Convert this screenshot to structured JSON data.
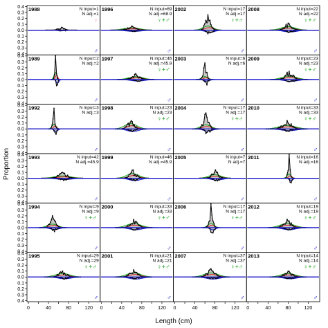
{
  "chart_data": {
    "type": "line",
    "xlabel": "Length (cm)",
    "ylabel": "Proportion",
    "xlim": [
      0,
      140
    ],
    "ylim": [
      0,
      0.4
    ],
    "x_ticks": [
      0,
      20,
      40,
      60,
      80,
      100,
      120
    ],
    "x_tick_labels": [
      "0",
      "20",
      "40",
      "60",
      "80",
      "100",
      "120"
    ],
    "y_ticks": [
      0,
      0.1,
      0.2,
      0.3,
      0.4
    ],
    "y_tick_labels_top": [
      "0.0",
      "0.1",
      "0.2",
      "0.3",
      "0.4"
    ],
    "y_tick_labels_bottom": [
      "0.1",
      "0.2",
      "0.3",
      "0.4"
    ],
    "symbols": {
      "female": "♀",
      "male": "♂",
      "combined": "♀+♂"
    },
    "colors": {
      "observed": "#000000",
      "fill": "#bdbdbd",
      "combined_fit": "#1a9e1a",
      "female_fit": "#d62728",
      "male_fit": "#1f1fd0",
      "zero_line": "#1f1fd0",
      "combined_symbol": "#1a9e1a",
      "female_symbol": "#e8a0a0",
      "male_symbol": "#1f1fd0"
    },
    "panels": [
      {
        "year": "1988",
        "n_input": "N input=1",
        "n_adj": "N adj.=1",
        "symbol": "female",
        "peak": [
          65,
          0.05
        ],
        "spread": 12,
        "combined_peak": 0
      },
      {
        "year": "1996",
        "n_input": "N input=69",
        "n_adj": "N adj.=68.9",
        "symbol": "combined",
        "peak": [
          60,
          0.07
        ],
        "spread": 16,
        "combined_peak": 0.04
      },
      {
        "year": "2002",
        "n_input": "N input=17",
        "n_adj": "N adj.=17",
        "symbol": "combined",
        "peak": [
          66,
          0.26
        ],
        "spread": 10,
        "combined_peak": 0.07
      },
      {
        "year": "2008",
        "n_input": "N input=22",
        "n_adj": "N adj.=22",
        "symbol": "combined",
        "peak": [
          80,
          0.12
        ],
        "spread": 14,
        "combined_peak": 0.06
      },
      {
        "year": "1989",
        "n_input": "N input=2",
        "n_adj": "N adj.=2",
        "symbol": "none",
        "peak": [
          54,
          0.4
        ],
        "spread": 3,
        "combined_peak": 0.12
      },
      {
        "year": "1997",
        "n_input": "N input=46",
        "n_adj": "N adj.=45.9",
        "symbol": "combined",
        "peak": [
          68,
          0.1
        ],
        "spread": 14,
        "combined_peak": 0.05
      },
      {
        "year": "2003",
        "n_input": "N input=6",
        "n_adj": "N adj.=6",
        "symbol": "none",
        "peak": [
          60,
          0.28
        ],
        "spread": 6,
        "combined_peak": 0.05
      },
      {
        "year": "2009",
        "n_input": "N input=23",
        "n_adj": "N adj.=23",
        "symbol": "combined",
        "peak": [
          82,
          0.14
        ],
        "spread": 14,
        "combined_peak": 0.06
      },
      {
        "year": "1992",
        "n_input": "N input=3",
        "n_adj": "N adj.=3",
        "symbol": "none",
        "peak": [
          51,
          0.35
        ],
        "spread": 4,
        "combined_peak": 0.08
      },
      {
        "year": "1998",
        "n_input": "N input=23",
        "n_adj": "N adj.=23",
        "symbol": "combined",
        "peak": [
          58,
          0.14
        ],
        "spread": 12,
        "combined_peak": 0.09
      },
      {
        "year": "2004",
        "n_input": "N input=17",
        "n_adj": "N adj.=17",
        "symbol": "combined",
        "peak": [
          62,
          0.27
        ],
        "spread": 10,
        "combined_peak": 0.07
      },
      {
        "year": "2010",
        "n_input": "N input=33",
        "n_adj": "N adj.=33",
        "symbol": "combined",
        "peak": [
          78,
          0.14
        ],
        "spread": 16,
        "combined_peak": 0.06
      },
      {
        "year": "1993",
        "n_input": "N input=42",
        "n_adj": "N adj.=45.9",
        "symbol": "none",
        "peak": [
          68,
          0.1
        ],
        "spread": 16,
        "combined_peak": 0.04
      },
      {
        "year": "1999",
        "n_input": "N input=46",
        "n_adj": "N adj.=45.9",
        "symbol": "none",
        "peak": [
          62,
          0.14
        ],
        "spread": 12,
        "combined_peak": 0.08
      },
      {
        "year": "2005",
        "n_input": "N input=7",
        "n_adj": "N adj.=7",
        "symbol": "none",
        "peak": [
          80,
          0.14
        ],
        "spread": 12,
        "combined_peak": 0.06
      },
      {
        "year": "2011",
        "n_input": "N input=16",
        "n_adj": "N adj.=16",
        "symbol": "none",
        "peak": [
          82,
          0.4
        ],
        "spread": 4,
        "combined_peak": 0.07
      },
      {
        "year": "1994",
        "n_input": "N input=9",
        "n_adj": "N adj.=9",
        "symbol": "combined",
        "peak": [
          48,
          0.2
        ],
        "spread": 10,
        "combined_peak": 0.06
      },
      {
        "year": "2000",
        "n_input": "N input=33",
        "n_adj": "N adj.=33",
        "symbol": "combined",
        "peak": [
          64,
          0.14
        ],
        "spread": 14,
        "combined_peak": 0.07
      },
      {
        "year": "2006",
        "n_input": "N input=17",
        "n_adj": "N adj.=17",
        "symbol": "combined",
        "peak": [
          72,
          0.4
        ],
        "spread": 6,
        "combined_peak": 0.07
      },
      {
        "year": "2012",
        "n_input": "N input=19",
        "n_adj": "N adj.=19",
        "symbol": "combined",
        "peak": [
          78,
          0.14
        ],
        "spread": 14,
        "combined_peak": 0.07
      },
      {
        "year": "1995",
        "n_input": "N input=29",
        "n_adj": "N adj.=29",
        "symbol": "combined",
        "peak": [
          68,
          0.1
        ],
        "spread": 14,
        "combined_peak": 0.06
      },
      {
        "year": "2001",
        "n_input": "N input=21",
        "n_adj": "N adj.=21",
        "symbol": "combined",
        "peak": [
          64,
          0.12
        ],
        "spread": 14,
        "combined_peak": 0.07
      },
      {
        "year": "2007",
        "n_input": "N input=37",
        "n_adj": "N adj.=37",
        "symbol": "combined",
        "peak": [
          72,
          0.14
        ],
        "spread": 14,
        "combined_peak": 0.07
      },
      {
        "year": "2013",
        "n_input": "N input=14",
        "n_adj": "N adj.=14",
        "symbol": "combined",
        "peak": [
          80,
          0.1
        ],
        "spread": 14,
        "combined_peak": 0.06
      }
    ]
  }
}
